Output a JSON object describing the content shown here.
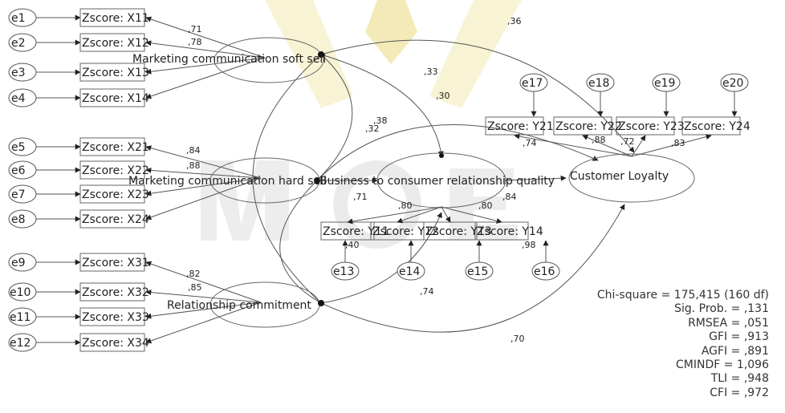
{
  "errors": [
    "e1",
    "e2",
    "e3",
    "e4",
    "e5",
    "e6",
    "e7",
    "e8",
    "e9",
    "e10",
    "e11",
    "e12",
    "e13",
    "e14",
    "e15",
    "e16",
    "e17",
    "e18",
    "e19",
    "e20"
  ],
  "indicators_left": [
    "Zscore: X11",
    "Zscore: X12",
    "Zscore: X13",
    "Zscore: X14",
    "Zscore: X21",
    "Zscore: X22",
    "Zscore: X23",
    "Zscore: X24",
    "Zscore: X31",
    "Zscore: X32",
    "Zscore: X33",
    "Zscore: X34"
  ],
  "indicators_mid": [
    "Zscore: Y11",
    "Zscore: Y12",
    "Zscore: Y13",
    "Zscore: Y14"
  ],
  "indicators_top": [
    "Zscore: Y21",
    "Zscore: Y22",
    "Zscore: Y23",
    "Zscore: Y24"
  ],
  "latents": {
    "soft_sell": "Marketing communication soft sell",
    "hard_sell": "Marketing communication hard sell",
    "relationship": "Relationship commitment",
    "quality": "Business to consumer relationship quality",
    "loyalty": "Customer Loyalty"
  },
  "coefficients": {
    "x11": ",71",
    "x12": ",78",
    "x21": ",84",
    "x22": ",88",
    "x31": ",82",
    "x32": ",85",
    "soft_loyalty": ",36",
    "soft_quality": ",33",
    "hard_loyalty": ",30",
    "hard_a": ",38",
    "hard_b": ",32",
    "y11": ",71",
    "y12": ",80",
    "y13": ",80",
    "y14": ",84",
    "y11b": ",40",
    "y14b": ",98",
    "y21": ",74",
    "y22": ",88",
    "y23": ",72",
    "y24": ",83",
    "rel_quality": ",74",
    "rel_loyalty": ",70"
  },
  "fit_stats": [
    "Chi-square = 175,415 (160 df)",
    "Sig. Prob. = ,131",
    "RMSEA = ,051",
    "GFI = ,913",
    "AGFI = ,891",
    "CMINDF = 1,096",
    "TLI = ,948",
    "CFI = ,972"
  ],
  "colors": {
    "watermark": "#ecdf86",
    "line": "#555555",
    "text": "#222222"
  }
}
